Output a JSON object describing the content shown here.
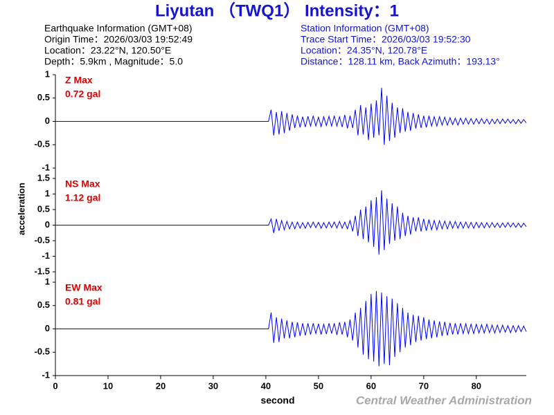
{
  "title": "Liyutan （TWQ1） Intensity：1",
  "earthquake_info": [
    "Earthquake Information  (GMT+08)",
    "Origin Time：2026/03/03 19:52:49",
    "Location：23.22°N, 120.50°E",
    "Depth：5.9km , Magnitude：5.0"
  ],
  "station_info": [
    "Station Information  (GMT+08)",
    "Trace Start Time：2026/03/03 19:52:30",
    "Location：24.35°N, 120.78°E",
    "Distance：128.11 km, Back Azimuth：193.13°"
  ],
  "ylabel": "acceleration",
  "credit": "Central Weather Administration",
  "chart_data": [
    {
      "type": "line",
      "annotation": "0.72 gal",
      "xlim": [
        0,
        89.5
      ],
      "ylim": [
        -1,
        1
      ],
      "yticks": [
        -1,
        -0.5,
        0,
        0.5,
        1
      ],
      "x": [
        0,
        40.5,
        41,
        41.5,
        42,
        42.5,
        43,
        43.5,
        44,
        44.5,
        45,
        45.5,
        46,
        46.5,
        47,
        47.5,
        48,
        48.5,
        49,
        49.5,
        50,
        50.5,
        51,
        51.5,
        52,
        52.5,
        53,
        53.5,
        54,
        54.5,
        55,
        55.5,
        56,
        56.5,
        57,
        57.5,
        58,
        58.5,
        59,
        59.5,
        60,
        60.5,
        61,
        61.5,
        62,
        62.5,
        63,
        63.5,
        64,
        64.5,
        65,
        65.5,
        66,
        66.5,
        67,
        67.5,
        68,
        68.5,
        69,
        69.5,
        70,
        70.5,
        71,
        71.5,
        72,
        72.5,
        73,
        73.5,
        74,
        74.5,
        75,
        75.5,
        76,
        76.5,
        77,
        77.5,
        78,
        78.5,
        79,
        79.5,
        80,
        80.5,
        81,
        81.5,
        82,
        82.5,
        83,
        83.5,
        84,
        84.5,
        85,
        85.5,
        86,
        86.5,
        87,
        87.5,
        88,
        88.5,
        89,
        89.5
      ],
      "series": [
        {
          "name": "Z Max",
          "color": "#0000ff",
          "values": [
            0,
            0,
            0.25,
            -0.3,
            0.2,
            -0.28,
            0.22,
            -0.25,
            0.18,
            -0.2,
            0.15,
            -0.14,
            0.12,
            -0.13,
            0.1,
            -0.12,
            0.11,
            -0.1,
            0.12,
            -0.1,
            0.09,
            -0.11,
            0.1,
            -0.09,
            0.11,
            -0.1,
            0.12,
            -0.1,
            0.1,
            -0.12,
            0.14,
            -0.15,
            0.12,
            -0.14,
            0.25,
            -0.3,
            0.35,
            -0.28,
            0.3,
            -0.4,
            0.38,
            -0.35,
            0.45,
            -0.3,
            0.72,
            -0.5,
            0.55,
            -0.42,
            0.4,
            -0.35,
            0.3,
            -0.25,
            0.28,
            -0.22,
            0.2,
            -0.2,
            0.18,
            -0.15,
            0.15,
            -0.14,
            0.12,
            -0.13,
            0.12,
            -0.1,
            0.1,
            -0.1,
            0.1,
            -0.08,
            0.09,
            -0.08,
            0.08,
            -0.07,
            0.07,
            -0.08,
            0.07,
            -0.06,
            0.07,
            -0.06,
            0.06,
            -0.06,
            0.06,
            -0.05,
            0.06,
            -0.05,
            0.05,
            -0.06,
            0.05,
            -0.05,
            0.05,
            -0.05,
            0.05,
            -0.04,
            0.05,
            -0.04,
            0.04,
            -0.05,
            0.04,
            -0.04,
            0.04,
            -0.03
          ]
        }
      ]
    },
    {
      "type": "line",
      "annotation": "1.12 gal",
      "xlim": [
        0,
        89.5
      ],
      "ylim": [
        -1.5,
        1.5
      ],
      "yticks": [
        -1.5,
        -1,
        -0.5,
        0,
        0.5,
        1,
        1.5
      ],
      "x": [
        0,
        40.5,
        41,
        41.5,
        42,
        42.5,
        43,
        43.5,
        44,
        44.5,
        45,
        45.5,
        46,
        46.5,
        47,
        47.5,
        48,
        48.5,
        49,
        49.5,
        50,
        50.5,
        51,
        51.5,
        52,
        52.5,
        53,
        53.5,
        54,
        54.5,
        55,
        55.5,
        56,
        56.5,
        57,
        57.5,
        58,
        58.5,
        59,
        59.5,
        60,
        60.5,
        61,
        61.5,
        62,
        62.5,
        63,
        63.5,
        64,
        64.5,
        65,
        65.5,
        66,
        66.5,
        67,
        67.5,
        68,
        68.5,
        69,
        69.5,
        70,
        70.5,
        71,
        71.5,
        72,
        72.5,
        73,
        73.5,
        74,
        74.5,
        75,
        75.5,
        76,
        76.5,
        77,
        77.5,
        78,
        78.5,
        79,
        79.5,
        80,
        80.5,
        81,
        81.5,
        82,
        82.5,
        83,
        83.5,
        84,
        84.5,
        85,
        85.5,
        86,
        86.5,
        87,
        87.5,
        88,
        88.5,
        89,
        89.5
      ],
      "series": [
        {
          "name": "NS Max",
          "color": "#0000ff",
          "values": [
            0,
            0,
            0.2,
            -0.25,
            0.2,
            -0.18,
            0.15,
            -0.15,
            0.12,
            -0.12,
            0.1,
            -0.12,
            0.1,
            -0.1,
            0.08,
            -0.1,
            0.09,
            -0.08,
            0.1,
            -0.08,
            0.09,
            -0.1,
            0.08,
            -0.09,
            0.1,
            -0.08,
            0.1,
            -0.09,
            0.12,
            -0.1,
            0.1,
            -0.12,
            0.15,
            -0.2,
            0.3,
            -0.35,
            0.5,
            -0.45,
            0.6,
            -0.55,
            0.8,
            -0.7,
            0.9,
            -0.95,
            1.12,
            -0.8,
            0.85,
            -0.6,
            0.7,
            -0.5,
            0.6,
            -0.45,
            0.4,
            -0.35,
            0.3,
            -0.3,
            0.25,
            -0.2,
            0.25,
            -0.2,
            0.2,
            -0.18,
            0.18,
            -0.15,
            0.15,
            -0.15,
            0.14,
            -0.12,
            0.13,
            -0.12,
            0.12,
            -0.1,
            0.12,
            -0.1,
            0.1,
            -0.1,
            0.1,
            -0.09,
            0.09,
            -0.1,
            0.09,
            -0.08,
            0.08,
            -0.09,
            0.08,
            -0.08,
            0.08,
            -0.07,
            0.07,
            -0.08,
            0.07,
            -0.07,
            0.08,
            -0.06,
            0.07,
            -0.07,
            0.06,
            -0.07,
            0.06,
            -0.05
          ]
        }
      ]
    },
    {
      "type": "line",
      "annotation": "0.81 gal",
      "xlabel": "second",
      "xlim": [
        0,
        89.5
      ],
      "xticks": [
        0,
        10,
        20,
        30,
        40,
        50,
        60,
        70,
        80
      ],
      "ylim": [
        -1,
        1
      ],
      "yticks": [
        -1,
        -0.5,
        0,
        0.5,
        1
      ],
      "x": [
        0,
        40.5,
        41,
        41.5,
        42,
        42.5,
        43,
        43.5,
        44,
        44.5,
        45,
        45.5,
        46,
        46.5,
        47,
        47.5,
        48,
        48.5,
        49,
        49.5,
        50,
        50.5,
        51,
        51.5,
        52,
        52.5,
        53,
        53.5,
        54,
        54.5,
        55,
        55.5,
        56,
        56.5,
        57,
        57.5,
        58,
        58.5,
        59,
        59.5,
        60,
        60.5,
        61,
        61.5,
        62,
        62.5,
        63,
        63.5,
        64,
        64.5,
        65,
        65.5,
        66,
        66.5,
        67,
        67.5,
        68,
        68.5,
        69,
        69.5,
        70,
        70.5,
        71,
        71.5,
        72,
        72.5,
        73,
        73.5,
        74,
        74.5,
        75,
        75.5,
        76,
        76.5,
        77,
        77.5,
        78,
        78.5,
        79,
        79.5,
        80,
        80.5,
        81,
        81.5,
        82,
        82.5,
        83,
        83.5,
        84,
        84.5,
        85,
        85.5,
        86,
        86.5,
        87,
        87.5,
        88,
        88.5,
        89,
        89.5
      ],
      "series": [
        {
          "name": "EW Max",
          "color": "#0000ff",
          "values": [
            0,
            0,
            0.35,
            -0.3,
            0.25,
            -0.28,
            0.22,
            -0.2,
            0.18,
            -0.2,
            0.15,
            -0.18,
            0.14,
            -0.15,
            0.12,
            -0.14,
            0.12,
            -0.12,
            0.12,
            -0.1,
            0.11,
            -0.12,
            0.1,
            -0.11,
            0.12,
            -0.1,
            0.12,
            -0.13,
            0.14,
            -0.12,
            0.15,
            -0.18,
            0.2,
            -0.25,
            0.35,
            -0.4,
            0.45,
            -0.55,
            0.6,
            -0.65,
            0.75,
            -0.7,
            0.81,
            -0.8,
            0.78,
            -0.75,
            0.7,
            -0.78,
            0.65,
            -0.6,
            0.55,
            -0.5,
            0.45,
            -0.4,
            0.35,
            -0.35,
            0.3,
            -0.28,
            0.28,
            -0.25,
            0.25,
            -0.22,
            0.2,
            -0.2,
            0.18,
            -0.18,
            0.16,
            -0.15,
            0.15,
            -0.14,
            0.13,
            -0.12,
            0.12,
            -0.12,
            0.12,
            -0.1,
            0.11,
            -0.1,
            0.1,
            -0.1,
            0.1,
            -0.09,
            0.09,
            -0.09,
            0.1,
            -0.08,
            0.08,
            -0.09,
            0.08,
            -0.08,
            0.08,
            -0.07,
            0.07,
            -0.08,
            0.07,
            -0.07,
            0.07,
            -0.06,
            0.06,
            -0.06
          ]
        }
      ]
    }
  ]
}
